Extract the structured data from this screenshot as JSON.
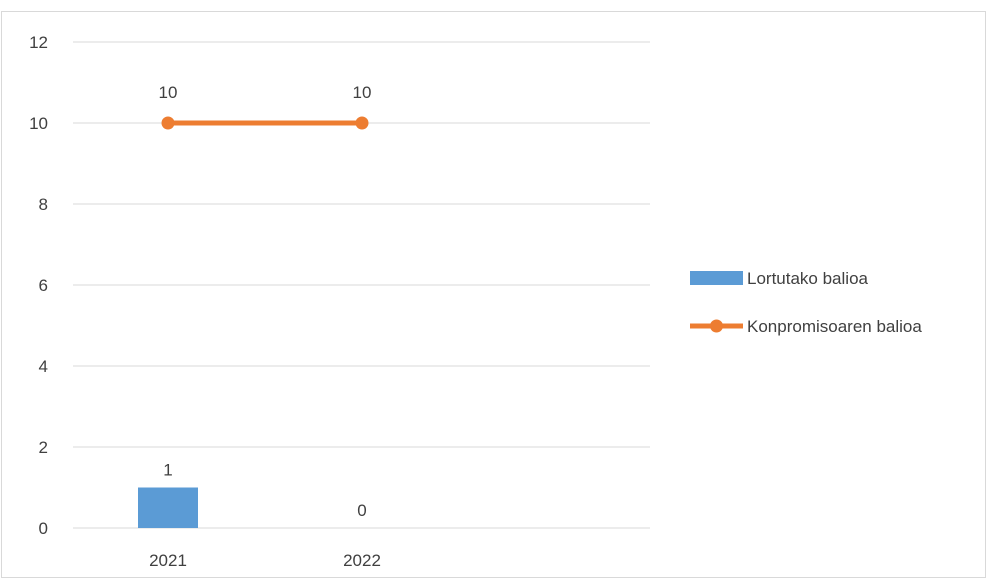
{
  "chart_data": {
    "type": "bar",
    "categories": [
      "2021",
      "2022"
    ],
    "ylim": [
      0,
      12
    ],
    "yticks": [
      0,
      2,
      4,
      6,
      8,
      10,
      12
    ],
    "grid": true,
    "legend_position": "right",
    "series": [
      {
        "name": "Lortutako balioa",
        "kind": "bar",
        "color": "#5b9bd5",
        "values": [
          1,
          0
        ],
        "labels": [
          "1",
          "0"
        ]
      },
      {
        "name": "Konpromisoaren balioa",
        "kind": "line",
        "color": "#ed7d31",
        "values": [
          10,
          10
        ],
        "labels": [
          "10",
          "10"
        ]
      }
    ]
  }
}
